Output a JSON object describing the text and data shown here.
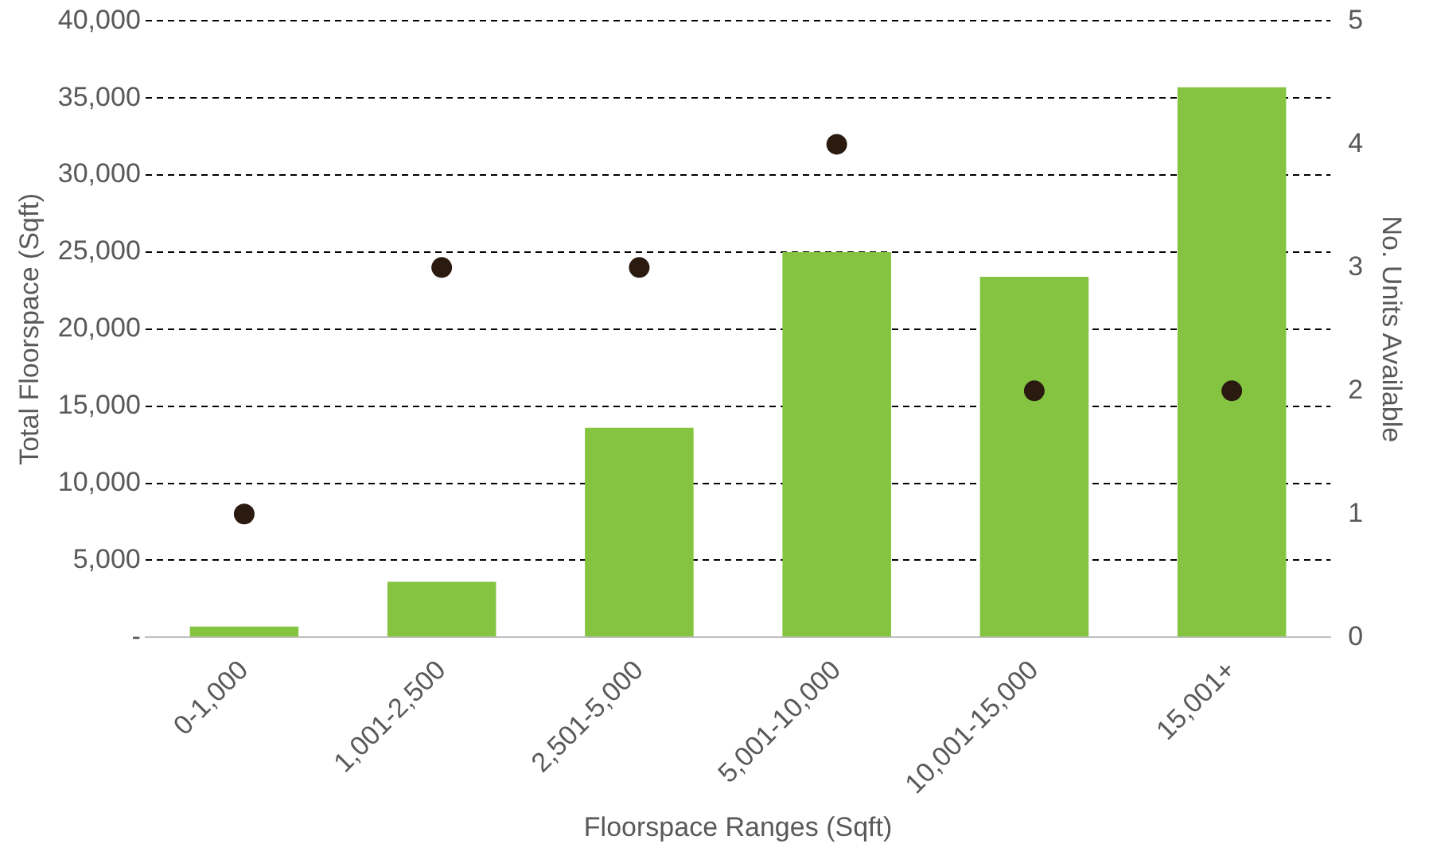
{
  "chart_data": {
    "type": "bar",
    "xlabel": "Floorspace Ranges (Sqft)",
    "ylabel": "Total Floorspace (Sqft)",
    "y2label": "No. Units Available",
    "categories": [
      "0-1,000",
      "1,001-2,500",
      "2,501-5,000",
      "5,001-10,000",
      "10,001-15,000",
      "15,001+"
    ],
    "series": [
      {
        "color": "#84c441",
        "values": [
          700,
          3600,
          13600,
          25000,
          23400,
          35700
        ]
      },
      {
        "type": "scatter",
        "axis": "y2",
        "color": "#2b1a10",
        "marker": "circle",
        "x": [
          "0-1,000",
          "1,001-2,500",
          "2,501-5,000",
          "5,001-10,000",
          "10,001-15,000",
          "15,001+"
        ],
        "values": [
          1,
          3,
          3,
          4,
          2,
          2
        ]
      }
    ],
    "ylim": [
      0,
      40000
    ],
    "yticks": [
      {
        "value": 0,
        "label": "-"
      },
      {
        "value": 5000,
        "label": "5,000"
      },
      {
        "value": 10000,
        "label": "10,000"
      },
      {
        "value": 15000,
        "label": "15,000"
      },
      {
        "value": 20000,
        "label": "20,000"
      },
      {
        "value": 25000,
        "label": "25,000"
      },
      {
        "value": 30000,
        "label": "30,000"
      },
      {
        "value": 35000,
        "label": "35,000"
      },
      {
        "value": 40000,
        "label": "40,000"
      }
    ],
    "y2lim": [
      0,
      5
    ],
    "y2ticks": [
      0,
      1,
      2,
      3,
      4,
      5
    ],
    "grid": "y",
    "line_style": "dashed"
  }
}
